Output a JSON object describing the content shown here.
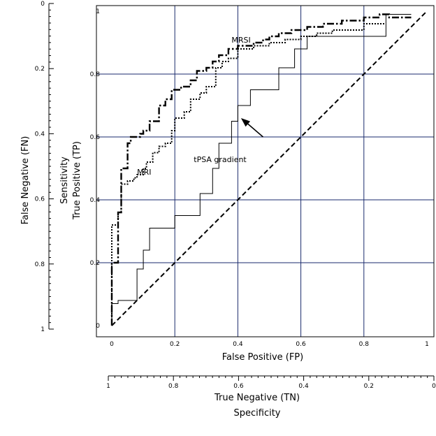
{
  "chart_data": {
    "type": "line",
    "title": "",
    "xlabel": "False Positive (FP)",
    "ylabel_lines": [
      "Sensitivity",
      "True Positive (TP)"
    ],
    "left_axis_label": "False Negative (FN)",
    "bottom_axis_label_lines": [
      "True Negative (TN)",
      "Specificity"
    ],
    "xlim": [
      0,
      1
    ],
    "ylim": [
      0,
      1
    ],
    "grid": true,
    "x_ticks": [
      "0",
      "0.2",
      "0.4",
      "0.6",
      "0.8",
      "1"
    ],
    "y_ticks": [
      "0",
      "0.2",
      "0.4",
      "0.6",
      "0.8",
      "1"
    ],
    "fn_ticks": [
      "0",
      "0.2",
      "0.4",
      "0.6",
      "0.8",
      "1"
    ],
    "tn_ticks": [
      "1",
      "0.8",
      "0.6",
      "0.4",
      "0.2",
      "0"
    ],
    "series": [
      {
        "name": "MRSI",
        "style": "dash-dot",
        "x": [
          0,
          0,
          0.02,
          0.02,
          0.03,
          0.03,
          0.05,
          0.05,
          0.06,
          0.06,
          0.09,
          0.09,
          0.1,
          0.1,
          0.12,
          0.12,
          0.15,
          0.15,
          0.17,
          0.17,
          0.19,
          0.19,
          0.22,
          0.22,
          0.25,
          0.25,
          0.27,
          0.27,
          0.3,
          0.3,
          0.32,
          0.32,
          0.34,
          0.34,
          0.37,
          0.37,
          0.4,
          0.4,
          0.45,
          0.45,
          0.48,
          0.48,
          0.5,
          0.5,
          0.53,
          0.53,
          0.57,
          0.57,
          0.62,
          0.62,
          0.67,
          0.67,
          0.73,
          0.73,
          0.8,
          0.8,
          0.85,
          0.85,
          0.88,
          0.88,
          0.95
        ],
        "y": [
          0,
          0.2,
          0.2,
          0.36,
          0.36,
          0.5,
          0.5,
          0.58,
          0.58,
          0.6,
          0.6,
          0.61,
          0.61,
          0.62,
          0.62,
          0.65,
          0.65,
          0.7,
          0.7,
          0.72,
          0.72,
          0.75,
          0.75,
          0.76,
          0.76,
          0.78,
          0.78,
          0.81,
          0.81,
          0.82,
          0.82,
          0.84,
          0.84,
          0.86,
          0.86,
          0.88,
          0.88,
          0.89,
          0.89,
          0.9,
          0.9,
          0.91,
          0.91,
          0.92,
          0.92,
          0.93,
          0.93,
          0.94,
          0.94,
          0.95,
          0.95,
          0.96,
          0.96,
          0.97,
          0.97,
          0.98,
          0.98,
          0.99,
          0.99,
          0.98,
          0.98
        ]
      },
      {
        "name": "MRI",
        "style": "dotted",
        "x": [
          0,
          0,
          0.02,
          0.02,
          0.03,
          0.03,
          0.05,
          0.05,
          0.07,
          0.07,
          0.08,
          0.08,
          0.1,
          0.1,
          0.11,
          0.11,
          0.13,
          0.13,
          0.15,
          0.15,
          0.17,
          0.17,
          0.19,
          0.19,
          0.2,
          0.2,
          0.23,
          0.23,
          0.25,
          0.25,
          0.28,
          0.28,
          0.3,
          0.3,
          0.33,
          0.33,
          0.35,
          0.35,
          0.37,
          0.37,
          0.4,
          0.4,
          0.45,
          0.45,
          0.5,
          0.5,
          0.55,
          0.55,
          0.6,
          0.6,
          0.65,
          0.65,
          0.7,
          0.7,
          0.8,
          0.8,
          0.87
        ],
        "y": [
          0,
          0.32,
          0.32,
          0.36,
          0.36,
          0.45,
          0.45,
          0.46,
          0.46,
          0.47,
          0.47,
          0.48,
          0.48,
          0.5,
          0.5,
          0.52,
          0.52,
          0.55,
          0.55,
          0.57,
          0.57,
          0.58,
          0.58,
          0.62,
          0.62,
          0.66,
          0.66,
          0.68,
          0.68,
          0.72,
          0.72,
          0.74,
          0.74,
          0.76,
          0.76,
          0.82,
          0.82,
          0.84,
          0.84,
          0.85,
          0.85,
          0.88,
          0.88,
          0.89,
          0.89,
          0.9,
          0.9,
          0.91,
          0.91,
          0.92,
          0.92,
          0.93,
          0.93,
          0.94,
          0.94,
          0.96,
          0.96
        ]
      },
      {
        "name": "tPSA gradient",
        "style": "solid",
        "x": [
          0,
          0,
          0.02,
          0.02,
          0.08,
          0.08,
          0.1,
          0.1,
          0.12,
          0.12,
          0.2,
          0.2,
          0.28,
          0.28,
          0.32,
          0.32,
          0.34,
          0.34,
          0.38,
          0.38,
          0.4,
          0.4,
          0.44,
          0.44,
          0.53,
          0.53,
          0.58,
          0.58,
          0.62,
          0.62,
          0.87,
          0.87,
          0.95
        ],
        "y": [
          0,
          0.07,
          0.07,
          0.08,
          0.08,
          0.18,
          0.18,
          0.24,
          0.24,
          0.31,
          0.31,
          0.35,
          0.35,
          0.42,
          0.42,
          0.5,
          0.5,
          0.58,
          0.58,
          0.65,
          0.65,
          0.7,
          0.7,
          0.75,
          0.75,
          0.82,
          0.82,
          0.88,
          0.88,
          0.92,
          0.92,
          0.99,
          0.99
        ]
      }
    ],
    "reference_line": {
      "style": "dashed",
      "x": [
        0,
        1
      ],
      "y": [
        0,
        1
      ]
    },
    "annotations": [
      {
        "text": "MRSI",
        "x": 0.38,
        "y": 0.9
      },
      {
        "text": "MRI",
        "x": 0.08,
        "y": 0.48
      },
      {
        "text": "tPSA gradient",
        "x": 0.26,
        "y": 0.52
      }
    ],
    "arrow": {
      "from": [
        0.48,
        0.6
      ],
      "to": [
        0.41,
        0.66
      ]
    }
  }
}
